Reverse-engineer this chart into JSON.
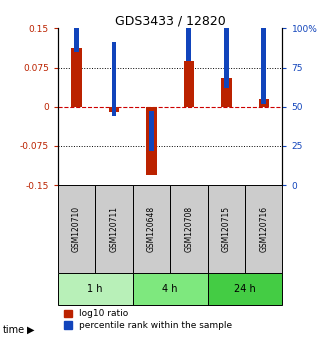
{
  "title": "GDS3433 / 12820",
  "samples": [
    "GSM120710",
    "GSM120711",
    "GSM120648",
    "GSM120708",
    "GSM120715",
    "GSM120716"
  ],
  "log10_ratio": [
    0.112,
    -0.01,
    -0.13,
    0.087,
    0.055,
    0.015
  ],
  "percentile_rank": [
    88,
    47,
    25,
    82,
    65,
    55
  ],
  "ylim_left": [
    -0.15,
    0.15
  ],
  "ylim_right": [
    0,
    100
  ],
  "yticks_left": [
    -0.15,
    -0.075,
    0,
    0.075,
    0.15
  ],
  "ytick_labels_left": [
    "-0.15",
    "-0.075",
    "0",
    "0.075",
    "0.15"
  ],
  "yticks_right": [
    0,
    25,
    50,
    75,
    100
  ],
  "ytick_labels_right": [
    "0",
    "25",
    "50",
    "75",
    "100%"
  ],
  "time_groups": [
    {
      "label": "1 h",
      "start": 0,
      "end": 1,
      "color": "#b8f0b8"
    },
    {
      "label": "4 h",
      "start": 2,
      "end": 3,
      "color": "#7ee87e"
    },
    {
      "label": "24 h",
      "start": 4,
      "end": 5,
      "color": "#44cc44"
    }
  ],
  "bar_color_red": "#bb2200",
  "bar_color_blue": "#1144bb",
  "bar_width": 0.28,
  "blue_marker_size": 0.13,
  "zero_line_color": "#cc0000",
  "background_color": "#ffffff",
  "sample_box_color": "#cccccc",
  "legend_red_label": "log10 ratio",
  "legend_blue_label": "percentile rank within the sample"
}
